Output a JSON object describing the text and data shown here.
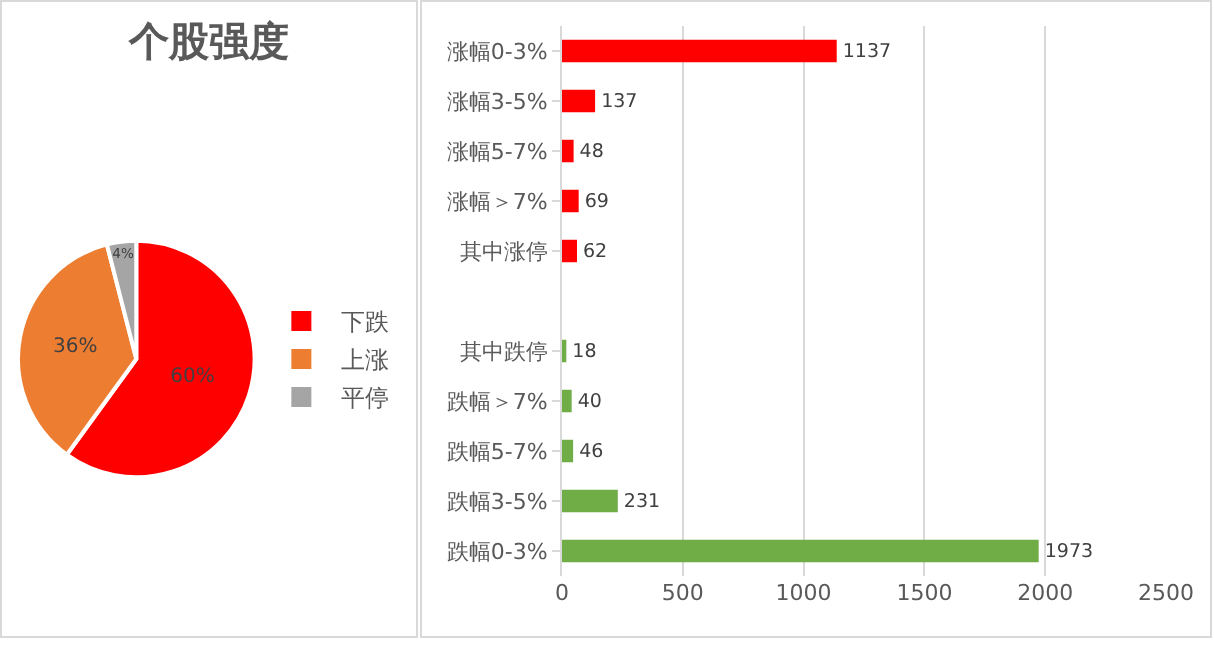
{
  "chart_data": [
    {
      "type": "pie",
      "title": "个股强度",
      "categories": [
        "下跌",
        "上涨",
        "平停"
      ],
      "values": [
        60,
        36,
        4
      ],
      "colors": [
        "#ff0000",
        "#ed7d31",
        "#a5a5a5"
      ],
      "value_labels": [
        "60%",
        "36%",
        "4%"
      ],
      "legend": "right"
    },
    {
      "type": "bar",
      "orientation": "horizontal",
      "categories": [
        "涨幅0-3%",
        "涨幅3-5%",
        "涨幅5-7%",
        "涨幅＞7%",
        "其中涨停",
        null,
        "其中跌停",
        "跌幅＞7%",
        "跌幅5-7%",
        "跌幅3-5%",
        "跌幅0-3%"
      ],
      "values": [
        1137,
        137,
        48,
        69,
        62,
        null,
        18,
        40,
        46,
        231,
        1973
      ],
      "colors": [
        "#ff0000",
        "#ff0000",
        "#ff0000",
        "#ff0000",
        "#ff0000",
        null,
        "#70ad47",
        "#70ad47",
        "#70ad47",
        "#70ad47",
        "#70ad47"
      ],
      "xlim": [
        0,
        2500
      ],
      "xticks": [
        0,
        500,
        1000,
        1500,
        2000,
        2500
      ],
      "grid": "x",
      "data_labels": true
    }
  ]
}
